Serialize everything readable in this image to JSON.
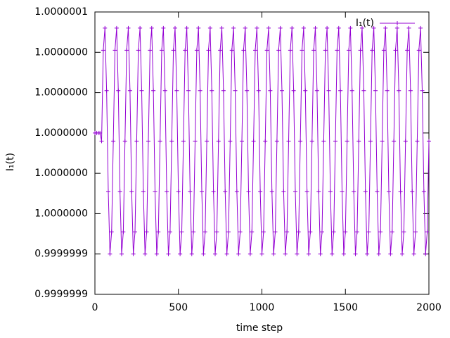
{
  "chart_data": {
    "type": "line",
    "xlabel": "time step",
    "ylabel": "I₁(t)",
    "xlim": [
      0,
      2000
    ],
    "xticks": [
      0,
      500,
      1000,
      1500,
      2000
    ],
    "ylim": [
      0.99999992,
      1.00000006
    ],
    "yticks": [
      {
        "value": 0.99999992,
        "label": "0.9999999"
      },
      {
        "value": 0.99999994,
        "label": "0.9999999"
      },
      {
        "value": 0.99999996,
        "label": "1.0000000"
      },
      {
        "value": 0.99999998,
        "label": "1.0000000"
      },
      {
        "value": 1.0,
        "label": "1.0000000"
      },
      {
        "value": 1.00000002,
        "label": "1.0000000"
      },
      {
        "value": 1.00000004,
        "label": "1.0000000"
      },
      {
        "value": 1.00000006,
        "label": "1.0000001"
      }
    ],
    "legend": "top-right",
    "x": [
      0,
      10,
      20,
      30,
      40,
      50,
      60,
      70,
      80,
      90,
      100,
      110,
      120,
      130,
      140,
      150,
      160,
      170,
      180,
      190,
      200,
      210,
      220,
      230,
      240,
      250,
      260,
      270,
      280,
      290,
      300,
      310,
      320,
      330,
      340,
      350,
      360,
      370,
      380,
      390,
      400,
      410,
      420,
      430,
      440,
      450,
      460,
      470,
      480,
      490,
      500,
      510,
      520,
      530,
      540,
      550,
      560,
      570,
      580,
      590,
      600,
      610,
      620,
      630,
      640,
      650,
      660,
      670,
      680,
      690,
      700,
      710,
      720,
      730,
      740,
      750,
      760,
      770,
      780,
      790,
      800,
      810,
      820,
      830,
      840,
      850,
      860,
      870,
      880,
      890,
      900,
      910,
      920,
      930,
      940,
      950,
      960,
      970,
      980,
      990,
      1000,
      1010,
      1020,
      1030,
      1040,
      1050,
      1060,
      1070,
      1080,
      1090,
      1100,
      1110,
      1120,
      1130,
      1140,
      1150,
      1160,
      1170,
      1180,
      1190,
      1200,
      1210,
      1220,
      1230,
      1240,
      1250,
      1260,
      1270,
      1280,
      1290,
      1300,
      1310,
      1320,
      1330,
      1340,
      1350,
      1360,
      1370,
      1380,
      1390,
      1400,
      1410,
      1420,
      1430,
      1440,
      1450,
      1460,
      1470,
      1480,
      1490,
      1500,
      1510,
      1520,
      1530,
      1540,
      1550,
      1560,
      1570,
      1580,
      1590,
      1600,
      1610,
      1620,
      1630,
      1640,
      1650,
      1660,
      1670,
      1680,
      1690,
      1700,
      1710,
      1720,
      1730,
      1740,
      1750,
      1760,
      1770,
      1780,
      1790,
      1800,
      1810,
      1820,
      1830,
      1840,
      1850,
      1860,
      1870,
      1880,
      1890,
      1900,
      1910,
      1920,
      1930,
      1940,
      1950,
      1960,
      1970,
      1980,
      1990,
      2000
    ],
    "series": [
      {
        "name": "I₁(t)",
        "color": "#9400d3",
        "values": [
          1,
          1,
          1,
          1,
          0.999999996,
          1.000000041,
          1.000000052,
          1.000000021,
          0.999999971,
          0.99999994,
          0.999999951,
          0.999999996,
          1.000000041,
          1.000000052,
          1.000000021,
          0.999999971,
          0.99999994,
          0.999999951,
          0.999999996,
          1.000000041,
          1.000000052,
          1.000000021,
          0.999999971,
          0.99999994,
          0.999999951,
          0.999999996,
          1.000000041,
          1.000000052,
          1.000000021,
          0.999999971,
          0.99999994,
          0.999999951,
          0.999999996,
          1.000000041,
          1.000000052,
          1.000000021,
          0.999999971,
          0.99999994,
          0.999999951,
          0.999999996,
          1.000000041,
          1.000000052,
          1.000000021,
          0.999999971,
          0.99999994,
          0.999999951,
          0.999999996,
          1.000000041,
          1.000000052,
          1.000000021,
          0.999999971,
          0.99999994,
          0.999999951,
          0.999999996,
          1.000000041,
          1.000000052,
          1.000000021,
          0.999999971,
          0.99999994,
          0.999999951,
          0.999999996,
          1.000000041,
          1.000000052,
          1.000000021,
          0.999999971,
          0.99999994,
          0.999999951,
          0.999999996,
          1.000000041,
          1.000000052,
          1.000000021,
          0.999999971,
          0.99999994,
          0.999999951,
          0.999999996,
          1.000000041,
          1.000000052,
          1.000000021,
          0.999999971,
          0.99999994,
          0.999999951,
          0.999999996,
          1.000000041,
          1.000000052,
          1.000000021,
          0.999999971,
          0.99999994,
          0.999999951,
          0.999999996,
          1.000000041,
          1.000000052,
          1.000000021,
          0.999999971,
          0.99999994,
          0.999999951,
          0.999999996,
          1.000000041,
          1.000000052,
          1.000000021,
          0.999999971,
          0.99999994,
          0.999999951,
          0.999999996,
          1.000000041,
          1.000000052,
          1.000000021,
          0.999999971,
          0.99999994,
          0.999999951,
          0.999999996,
          1.000000041,
          1.000000052,
          1.000000021,
          0.999999971,
          0.99999994,
          0.999999951,
          0.999999996,
          1.000000041,
          1.000000052,
          1.000000021,
          0.999999971,
          0.99999994,
          0.999999951,
          0.999999996,
          1.000000041,
          1.000000052,
          1.000000021,
          0.999999971,
          0.99999994,
          0.999999951,
          0.999999996,
          1.000000041,
          1.000000052,
          1.000000021,
          0.999999971,
          0.99999994,
          0.999999951,
          0.999999996,
          1.000000041,
          1.000000052,
          1.000000021,
          0.999999971,
          0.99999994,
          0.999999951,
          0.999999996,
          1.000000041,
          1.000000052,
          1.000000021,
          0.999999971,
          0.99999994,
          0.999999951,
          0.999999996,
          1.000000041,
          1.000000052,
          1.000000021,
          0.999999971,
          0.99999994,
          0.999999951,
          0.999999996,
          1.000000041,
          1.000000052,
          1.000000021,
          0.999999971,
          0.99999994,
          0.999999951,
          0.999999996,
          1.000000041,
          1.000000052,
          1.000000021,
          0.999999971,
          0.99999994,
          0.999999951,
          0.999999996,
          1.000000041,
          1.000000052,
          1.000000021,
          0.999999971,
          0.99999994,
          0.999999951,
          0.999999996,
          1.000000041,
          1.000000052,
          1.000000021,
          0.999999971,
          0.99999994,
          0.999999951,
          0.999999996,
          1.000000041,
          1.000000052,
          1.000000021,
          0.999999971,
          0.99999994,
          0.999999951,
          0.999999996,
          1.000000041,
          1.000000052,
          1.000000021,
          0.999999971,
          0.99999994,
          0.999999951,
          0.999999996
        ]
      }
    ]
  }
}
